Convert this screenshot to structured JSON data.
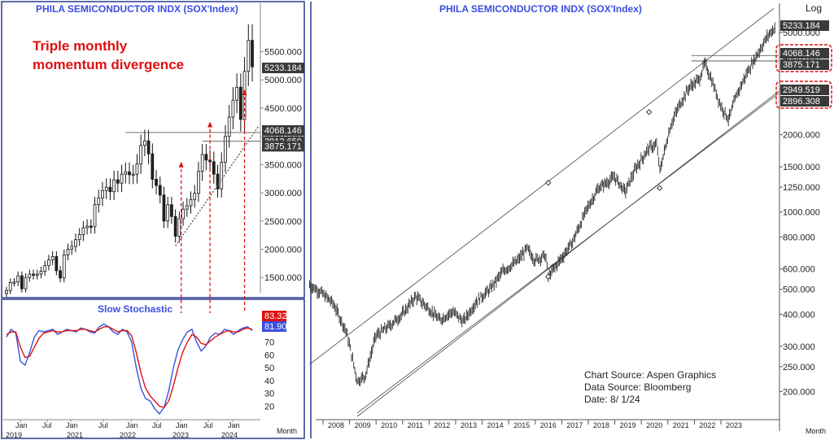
{
  "colors": {
    "title": "#3b4fe0",
    "annotation": "#e01010",
    "frame": "#2c3a90",
    "stoch_fast": "#3b4fe0",
    "stoch_slow": "#e01010",
    "label_bg": "#3a3a3a"
  },
  "chart_data": [
    {
      "type": "candlestick",
      "title": "PHILA  SEMICONDUCTOR  INDX  (SOX'Index)",
      "annotation": "Triple monthly momentum divergence",
      "annotation_lines": [
        "Triple monthly",
        "momentum divergence"
      ],
      "period": "Month",
      "ylim": [
        1200,
        6300
      ],
      "yticks": [
        1500,
        2000,
        2500,
        3000,
        3500,
        4000,
        4500,
        5000,
        5500
      ],
      "ytick_labels": [
        "1500.000",
        "2000.000",
        "2500.000",
        "3000.000",
        "3500.000",
        "4000.000",
        "4500.000",
        "5000.000",
        "5500.000"
      ],
      "value_labels": [
        "5233.184",
        "4068.146",
        "3912.650",
        "3875.171"
      ],
      "value_levels": [
        5233.184,
        4068.146,
        3912.65,
        3875.171
      ],
      "x_tick_labels": [
        "Jan",
        "Jul",
        "Jan",
        "Jul",
        "Jan",
        "Jul",
        "Jan",
        "Jul",
        "Jan"
      ],
      "year_labels": [
        "2019",
        "2021",
        "2022",
        "2023",
        "2024"
      ],
      "closes": [
        1270,
        1410,
        1420,
        1530,
        1300,
        1500,
        1560,
        1540,
        1560,
        1610,
        1710,
        1810,
        1870,
        1620,
        1490,
        1900,
        2000,
        2050,
        2170,
        2260,
        2380,
        2410,
        2400,
        2790,
        2910,
        3040,
        3100,
        3020,
        3230,
        3170,
        3330,
        3370,
        3320,
        3330,
        3510,
        3840,
        3920,
        3690,
        3240,
        3130,
        2960,
        2500,
        2790,
        2580,
        2230,
        2540,
        2710,
        2770,
        2880,
        2990,
        3380,
        3680,
        3580,
        3550,
        3330,
        3070,
        3540,
        4000,
        4340,
        4640,
        4870,
        4300,
        5150,
        5700,
        5233
      ]
    },
    {
      "type": "line",
      "title": "Slow  Stochastic",
      "yticks": [
        20,
        30,
        40,
        50,
        60,
        70
      ],
      "ylim": [
        12,
        92
      ],
      "value_labels": [
        "83.32",
        "81.90"
      ],
      "series": [
        {
          "values": [
            74,
            80,
            77,
            55,
            52,
            62,
            74,
            79,
            78,
            79,
            80,
            76,
            78,
            80,
            79,
            78,
            81,
            80,
            78,
            77,
            82,
            84,
            82,
            78,
            76,
            80,
            78,
            70,
            50,
            34,
            26,
            24,
            18,
            14,
            19,
            32,
            50,
            64,
            72,
            78,
            80,
            70,
            63,
            67,
            74,
            77,
            76,
            80,
            79,
            76,
            79,
            81,
            82,
            79
          ]
        },
        {
          "values": [
            76,
            78,
            78,
            66,
            58,
            59,
            66,
            73,
            77,
            78,
            79,
            78,
            78,
            79,
            79,
            79,
            80,
            80,
            79,
            78,
            80,
            82,
            82,
            80,
            78,
            79,
            79,
            75,
            62,
            46,
            34,
            28,
            24,
            20,
            19,
            24,
            36,
            50,
            62,
            70,
            76,
            74,
            69,
            68,
            71,
            74,
            76,
            78,
            79,
            78,
            78,
            80,
            81,
            80
          ]
        }
      ],
      "x_label": "Month"
    },
    {
      "type": "line",
      "title": "PHILA  SEMICONDUCTOR  INDX  (SOX'Index)",
      "scale": "Log",
      "period": "Month",
      "yticks": [
        200,
        250,
        300,
        400,
        500,
        600,
        800,
        1000,
        1250,
        1500,
        2000,
        3000,
        4000,
        5000
      ],
      "ytick_labels": [
        "200.000",
        "250.000",
        "300.000",
        "400.000",
        "500.000",
        "600.000",
        "800.000",
        "1000.000",
        "1250.000",
        "1500.000",
        "2000.000",
        "3000.000",
        "4000.000",
        "5000.000"
      ],
      "ylim": [
        160,
        6500
      ],
      "value_labels": [
        "5233.184",
        "4068.146",
        "3875.171",
        "2949.519",
        "2896.308"
      ],
      "x_labels": [
        "2008",
        "2009",
        "2010",
        "2011",
        "2012",
        "2013",
        "2014",
        "2015",
        "2016",
        "2017",
        "2018",
        "2019",
        "2020",
        "2021",
        "2022",
        "2023"
      ],
      "anchors": [
        [
          2007.0,
          520
        ],
        [
          2007.4,
          490
        ],
        [
          2007.9,
          440
        ],
        [
          2008.4,
          340
        ],
        [
          2008.8,
          220
        ],
        [
          2009.1,
          230
        ],
        [
          2009.5,
          330
        ],
        [
          2010.0,
          360
        ],
        [
          2010.5,
          400
        ],
        [
          2011.0,
          470
        ],
        [
          2011.5,
          420
        ],
        [
          2011.9,
          380
        ],
        [
          2012.4,
          410
        ],
        [
          2012.8,
          375
        ],
        [
          2013.3,
          450
        ],
        [
          2013.8,
          500
        ],
        [
          2014.3,
          590
        ],
        [
          2014.8,
          640
        ],
        [
          2015.2,
          720
        ],
        [
          2015.5,
          650
        ],
        [
          2015.9,
          680
        ],
        [
          2016.0,
          560
        ],
        [
          2016.4,
          640
        ],
        [
          2016.9,
          760
        ],
        [
          2017.5,
          1050
        ],
        [
          2017.9,
          1240
        ],
        [
          2018.5,
          1370
        ],
        [
          2018.9,
          1200
        ],
        [
          2019.3,
          1480
        ],
        [
          2019.8,
          1780
        ],
        [
          2020.1,
          1830
        ],
        [
          2020.2,
          1440
        ],
        [
          2020.6,
          2150
        ],
        [
          2020.9,
          2550
        ],
        [
          2021.3,
          3050
        ],
        [
          2021.7,
          3300
        ],
        [
          2021.9,
          3800
        ],
        [
          2022.1,
          3400
        ],
        [
          2022.5,
          2600
        ],
        [
          2022.8,
          2300
        ],
        [
          2023.1,
          2850
        ],
        [
          2023.5,
          3500
        ],
        [
          2023.9,
          4150
        ],
        [
          2024.3,
          4900
        ],
        [
          2024.55,
          5233
        ]
      ],
      "source_lines": [
        "Chart Source:  Aspen  Graphics",
        "Data  Source:  Bloomberg",
        "Date:    8/  1/24"
      ],
      "x_label": "Month"
    }
  ]
}
